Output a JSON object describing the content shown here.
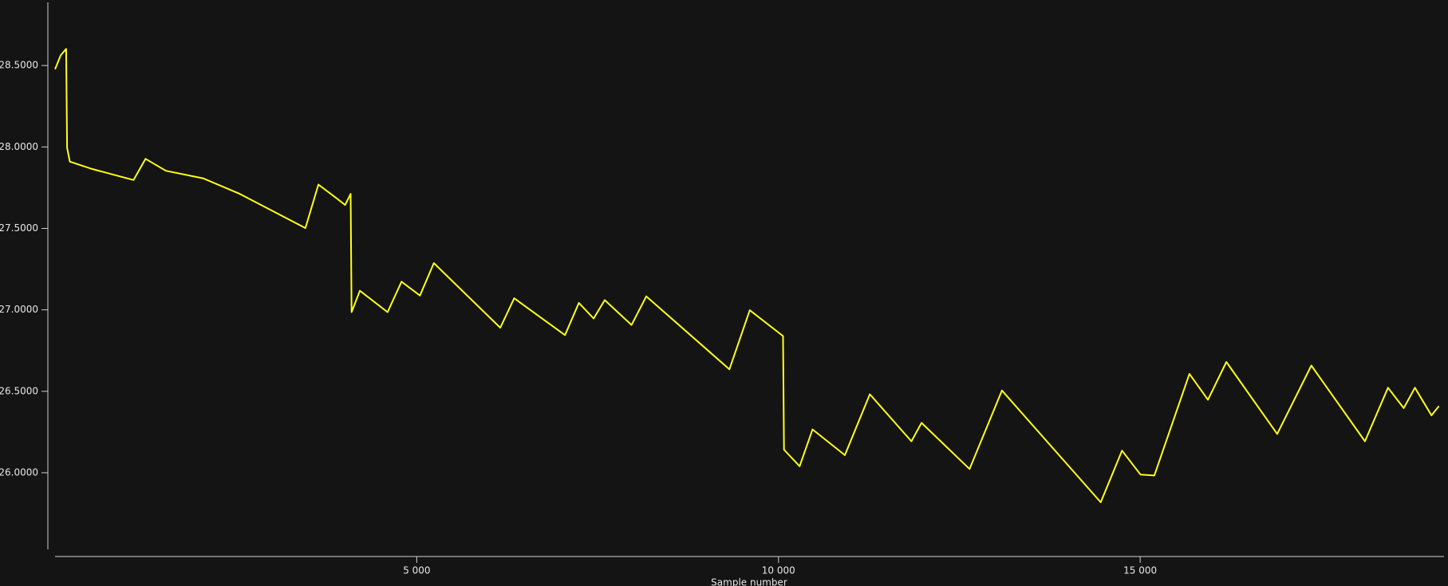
{
  "chart_data": {
    "type": "line",
    "x_label": "Sample number",
    "xlim": [
      0,
      19200
    ],
    "ylim": [
      25.53,
      28.885
    ],
    "xticks": [
      {
        "value": 5000,
        "label": "5 000"
      },
      {
        "value": 10000,
        "label": "10 000"
      },
      {
        "value": 15000,
        "label": "15 000"
      }
    ],
    "yticks": [
      {
        "value": 26.0,
        "label": "26.0000"
      },
      {
        "value": 26.5,
        "label": "26.5000"
      },
      {
        "value": 27.0,
        "label": "27.0000"
      },
      {
        "value": 27.5,
        "label": "27.5000"
      },
      {
        "value": 28.0,
        "label": "28.0000"
      },
      {
        "value": 28.5,
        "label": "28.5000"
      }
    ],
    "x": [
      0,
      77,
      153,
      166,
      204,
      511,
      1085,
      1251,
      1532,
      2043,
      2554,
      3461,
      3640,
      3895,
      4010,
      4086,
      4099,
      4214,
      4597,
      4789,
      5044,
      5236,
      6155,
      6347,
      7049,
      7241,
      7445,
      7598,
      7969,
      8173,
      9322,
      9603,
      10063,
      10076,
      10293,
      10471,
      10918,
      11263,
      11838,
      11978,
      12642,
      13089,
      14455,
      14749,
      15004,
      15196,
      15681,
      15937,
      16192,
      16894,
      17366,
      18107,
      18426,
      18643,
      18797,
      19027,
      19129
    ],
    "series": [
      {
        "color": "#ffff1a",
        "values": [
          28.477,
          28.562,
          28.602,
          27.995,
          27.91,
          27.865,
          27.797,
          27.927,
          27.854,
          27.808,
          27.712,
          27.502,
          27.769,
          27.684,
          27.644,
          27.712,
          26.986,
          27.117,
          26.986,
          27.173,
          27.088,
          27.287,
          26.89,
          27.071,
          26.845,
          27.043,
          26.947,
          27.06,
          26.907,
          27.083,
          26.635,
          26.998,
          26.839,
          26.142,
          26.04,
          26.266,
          26.108,
          26.482,
          26.193,
          26.306,
          26.023,
          26.505,
          25.819,
          26.136,
          25.989,
          25.983,
          26.607,
          26.448,
          26.68,
          26.238,
          26.658,
          26.193,
          26.522,
          26.397,
          26.522,
          26.352,
          26.409
        ]
      }
    ]
  }
}
